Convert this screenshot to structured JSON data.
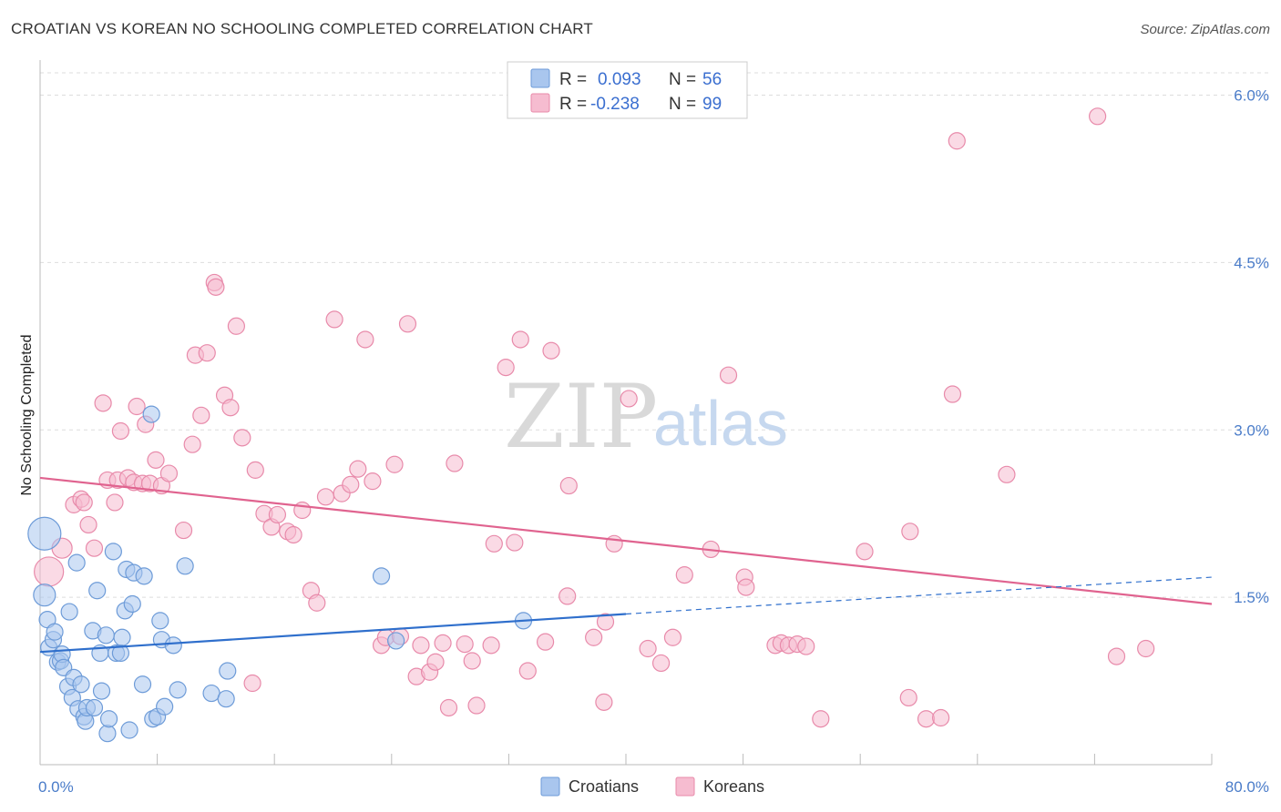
{
  "title": "CROATIAN VS KOREAN NO SCHOOLING COMPLETED CORRELATION CHART",
  "source": "Source: ZipAtlas.com",
  "watermark": {
    "zip": "ZIP",
    "atlas": "atlas"
  },
  "legend": {
    "rows": [
      {
        "r_label": "R =",
        "r_value": "0.093",
        "n_label": "N =",
        "n_value": "56"
      },
      {
        "r_label": "R =",
        "r_value": "-0.238",
        "n_label": "N =",
        "n_value": "99"
      }
    ]
  },
  "bottom_legend": [
    "Croatians",
    "Koreans"
  ],
  "colors": {
    "croatian_fill": "#a9c6ee",
    "croatian_stroke": "#6d9bd8",
    "croatian_line": "#2f6fcc",
    "korean_fill": "#f6bcd0",
    "korean_stroke": "#e88aaa",
    "korean_line": "#e0638f",
    "grid": "#dddddd",
    "axis": "#bbbbbb"
  },
  "chart_data": {
    "type": "scatter",
    "title": "CROATIAN VS KOREAN NO SCHOOLING COMPLETED CORRELATION CHART",
    "xlabel": "",
    "ylabel": "No Schooling Completed",
    "xlim": [
      0,
      80
    ],
    "ylim": [
      0,
      6.2
    ],
    "x_tick_labels": [
      "0.0%",
      "80.0%"
    ],
    "y_ticks": [
      1.5,
      3.0,
      4.5,
      6.0
    ],
    "y_tick_labels": [
      "1.5%",
      "3.0%",
      "4.5%",
      "6.0%"
    ],
    "grid": true,
    "legend_position": "top-center",
    "series": [
      {
        "name": "Croatians",
        "R": 0.093,
        "N": 56,
        "trend": {
          "x0": 0,
          "y0": 1.01,
          "x1": 40,
          "y1": 1.35,
          "dash_to_x": 80,
          "dash_to_y": 1.68
        },
        "points": [
          [
            0.3,
            2.07,
            18
          ],
          [
            0.3,
            1.52,
            12
          ],
          [
            0.5,
            1.3,
            9
          ],
          [
            0.6,
            1.05,
            9
          ],
          [
            0.9,
            1.12,
            9
          ],
          [
            1.0,
            1.19,
            9
          ],
          [
            1.2,
            0.92,
            9
          ],
          [
            1.4,
            0.93,
            9
          ],
          [
            1.5,
            0.99,
            9
          ],
          [
            1.6,
            0.87,
            9
          ],
          [
            1.9,
            0.7,
            9
          ],
          [
            2.0,
            1.37,
            9
          ],
          [
            2.2,
            0.6,
            9
          ],
          [
            2.3,
            0.78,
            9
          ],
          [
            2.5,
            1.81,
            9
          ],
          [
            2.6,
            0.5,
            9
          ],
          [
            2.8,
            0.72,
            9
          ],
          [
            3.0,
            0.43,
            9
          ],
          [
            3.1,
            0.39,
            9
          ],
          [
            3.2,
            0.51,
            9
          ],
          [
            3.6,
            1.2,
            9
          ],
          [
            3.7,
            0.51,
            9
          ],
          [
            3.9,
            1.56,
            9
          ],
          [
            4.1,
            1.0,
            9
          ],
          [
            4.2,
            0.66,
            9
          ],
          [
            4.5,
            1.16,
            9
          ],
          [
            4.6,
            0.28,
            9
          ],
          [
            4.7,
            0.41,
            9
          ],
          [
            5.0,
            1.91,
            9
          ],
          [
            5.2,
            1.0,
            9
          ],
          [
            5.5,
            1.0,
            9
          ],
          [
            5.6,
            1.14,
            9
          ],
          [
            5.8,
            1.38,
            9
          ],
          [
            5.9,
            1.75,
            9
          ],
          [
            6.1,
            0.31,
            9
          ],
          [
            6.3,
            1.44,
            9
          ],
          [
            6.4,
            1.72,
            9
          ],
          [
            7.0,
            0.72,
            9
          ],
          [
            7.1,
            1.69,
            9
          ],
          [
            7.6,
            3.14,
            9
          ],
          [
            7.7,
            0.41,
            9
          ],
          [
            8.0,
            0.43,
            9
          ],
          [
            8.2,
            1.29,
            9
          ],
          [
            8.3,
            1.12,
            9
          ],
          [
            8.5,
            0.52,
            9
          ],
          [
            9.1,
            1.07,
            9
          ],
          [
            9.4,
            0.67,
            9
          ],
          [
            9.9,
            1.78,
            9
          ],
          [
            11.7,
            0.64,
            9
          ],
          [
            12.7,
            0.59,
            9
          ],
          [
            12.8,
            0.84,
            9
          ],
          [
            23.3,
            1.69,
            9
          ],
          [
            24.3,
            1.11,
            9
          ],
          [
            33.0,
            1.29,
            9
          ]
        ]
      },
      {
        "name": "Koreans",
        "R": -0.238,
        "N": 99,
        "trend": {
          "x0": 0,
          "y0": 2.57,
          "x1": 80,
          "y1": 1.44
        },
        "points": [
          [
            0.6,
            1.73,
            16
          ],
          [
            1.5,
            1.94,
            11
          ],
          [
            2.3,
            2.33,
            9
          ],
          [
            2.8,
            2.38,
            9
          ],
          [
            3.0,
            2.35,
            9
          ],
          [
            3.3,
            2.15,
            9
          ],
          [
            3.7,
            1.94,
            9
          ],
          [
            4.3,
            3.24,
            9
          ],
          [
            4.6,
            2.55,
            9
          ],
          [
            5.1,
            2.35,
            9
          ],
          [
            5.3,
            2.55,
            9
          ],
          [
            5.5,
            2.99,
            9
          ],
          [
            6.0,
            2.57,
            9
          ],
          [
            6.4,
            2.53,
            9
          ],
          [
            6.6,
            3.21,
            9
          ],
          [
            7.0,
            2.52,
            9
          ],
          [
            7.2,
            3.05,
            9
          ],
          [
            7.5,
            2.52,
            9
          ],
          [
            7.9,
            2.73,
            9
          ],
          [
            8.3,
            2.5,
            9
          ],
          [
            8.8,
            2.61,
            9
          ],
          [
            9.8,
            2.1,
            9
          ],
          [
            10.4,
            2.87,
            9
          ],
          [
            10.6,
            3.67,
            9
          ],
          [
            11.0,
            3.13,
            9
          ],
          [
            11.4,
            3.69,
            9
          ],
          [
            11.9,
            4.32,
            9
          ],
          [
            12.0,
            4.28,
            9
          ],
          [
            12.6,
            3.31,
            9
          ],
          [
            13.0,
            3.2,
            9
          ],
          [
            13.4,
            3.93,
            9
          ],
          [
            13.8,
            2.93,
            9
          ],
          [
            14.5,
            0.73,
            9
          ],
          [
            14.7,
            2.64,
            9
          ],
          [
            15.3,
            2.25,
            9
          ],
          [
            15.8,
            2.13,
            9
          ],
          [
            16.2,
            2.24,
            9
          ],
          [
            16.9,
            2.09,
            9
          ],
          [
            17.3,
            2.06,
            9
          ],
          [
            17.9,
            2.28,
            9
          ],
          [
            18.5,
            1.56,
            9
          ],
          [
            18.9,
            1.45,
            9
          ],
          [
            19.5,
            2.4,
            9
          ],
          [
            20.1,
            3.99,
            9
          ],
          [
            20.6,
            2.43,
            9
          ],
          [
            21.2,
            2.51,
            9
          ],
          [
            21.7,
            2.65,
            9
          ],
          [
            22.2,
            3.81,
            9
          ],
          [
            22.7,
            2.54,
            9
          ],
          [
            23.3,
            1.07,
            9
          ],
          [
            23.6,
            1.14,
            9
          ],
          [
            24.2,
            2.69,
            9
          ],
          [
            24.6,
            1.15,
            9
          ],
          [
            25.1,
            3.95,
            9
          ],
          [
            25.7,
            0.79,
            9
          ],
          [
            26.0,
            1.07,
            9
          ],
          [
            26.6,
            0.83,
            9
          ],
          [
            27.0,
            0.92,
            9
          ],
          [
            27.5,
            1.09,
            9
          ],
          [
            27.9,
            0.51,
            9
          ],
          [
            28.3,
            2.7,
            9
          ],
          [
            29.0,
            1.08,
            9
          ],
          [
            29.5,
            0.93,
            9
          ],
          [
            29.8,
            0.53,
            9
          ],
          [
            30.8,
            1.07,
            9
          ],
          [
            31.0,
            1.98,
            9
          ],
          [
            31.8,
            3.56,
            9
          ],
          [
            32.4,
            1.99,
            9
          ],
          [
            32.8,
            3.81,
            9
          ],
          [
            33.3,
            0.84,
            9
          ],
          [
            34.5,
            1.1,
            9
          ],
          [
            34.9,
            3.71,
            9
          ],
          [
            36.0,
            1.51,
            9
          ],
          [
            36.1,
            2.5,
            9
          ],
          [
            37.8,
            1.14,
            9
          ],
          [
            38.5,
            0.56,
            9
          ],
          [
            38.6,
            1.28,
            9
          ],
          [
            39.2,
            1.98,
            9
          ],
          [
            40.2,
            3.28,
            9
          ],
          [
            41.5,
            1.04,
            9
          ],
          [
            42.4,
            0.91,
            9
          ],
          [
            43.2,
            1.14,
            9
          ],
          [
            44.0,
            1.7,
            9
          ],
          [
            45.8,
            1.93,
            9
          ],
          [
            47.0,
            3.49,
            9
          ],
          [
            48.1,
            1.68,
            9
          ],
          [
            48.2,
            1.59,
            9
          ],
          [
            50.2,
            1.07,
            9
          ],
          [
            50.6,
            1.09,
            9
          ],
          [
            51.1,
            1.07,
            9
          ],
          [
            51.7,
            1.08,
            9
          ],
          [
            52.3,
            1.06,
            9
          ],
          [
            53.3,
            0.41,
            9
          ],
          [
            56.3,
            1.91,
            9
          ],
          [
            59.3,
            0.6,
            9
          ],
          [
            59.4,
            2.09,
            9
          ],
          [
            60.5,
            0.41,
            9
          ],
          [
            61.5,
            0.42,
            9
          ],
          [
            62.3,
            3.32,
            9
          ],
          [
            62.6,
            5.59,
            9
          ],
          [
            66.0,
            2.6,
            9
          ],
          [
            72.2,
            5.81,
            9
          ],
          [
            73.5,
            0.97,
            9
          ],
          [
            75.5,
            1.04,
            9
          ]
        ]
      }
    ]
  }
}
